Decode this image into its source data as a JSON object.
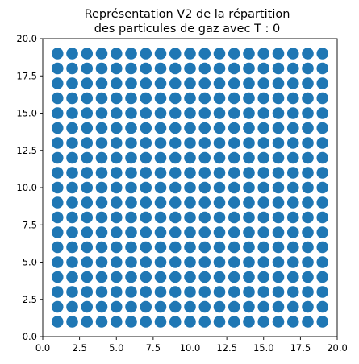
{
  "chart_data": {
    "type": "scatter",
    "title_lines": [
      "Représentation V2 de la répartition",
      "des particules de gaz avec T : 0"
    ],
    "xlabel": "",
    "ylabel": "",
    "xlim": [
      0,
      20
    ],
    "ylim": [
      0,
      20
    ],
    "grid": false,
    "legend": "none",
    "marker_color": "#1f77b4",
    "xticks": [
      0,
      2.5,
      5,
      7.5,
      10,
      12.5,
      15,
      17.5,
      20
    ],
    "xtick_labels": [
      "0.0",
      "2.5",
      "5.0",
      "7.5",
      "10.0",
      "12.5",
      "15.0",
      "17.5",
      "20.0"
    ],
    "yticks": [
      0,
      2.5,
      5,
      7.5,
      10,
      12.5,
      15,
      17.5,
      20
    ],
    "ytick_labels": [
      "0.0",
      "2.5",
      "5.0",
      "7.5",
      "10.0",
      "12.5",
      "15.0",
      "17.5",
      "20.0"
    ],
    "points_description": "grid of particles at integer positions",
    "x": [
      1,
      2,
      3,
      4,
      5,
      6,
      7,
      8,
      9,
      10,
      11,
      12,
      13,
      14,
      15,
      16,
      17,
      18,
      19
    ],
    "y": [
      1,
      2,
      3,
      4,
      5,
      6,
      7,
      8,
      9,
      10,
      11,
      12,
      13,
      14,
      15,
      16,
      17,
      18,
      19
    ]
  }
}
